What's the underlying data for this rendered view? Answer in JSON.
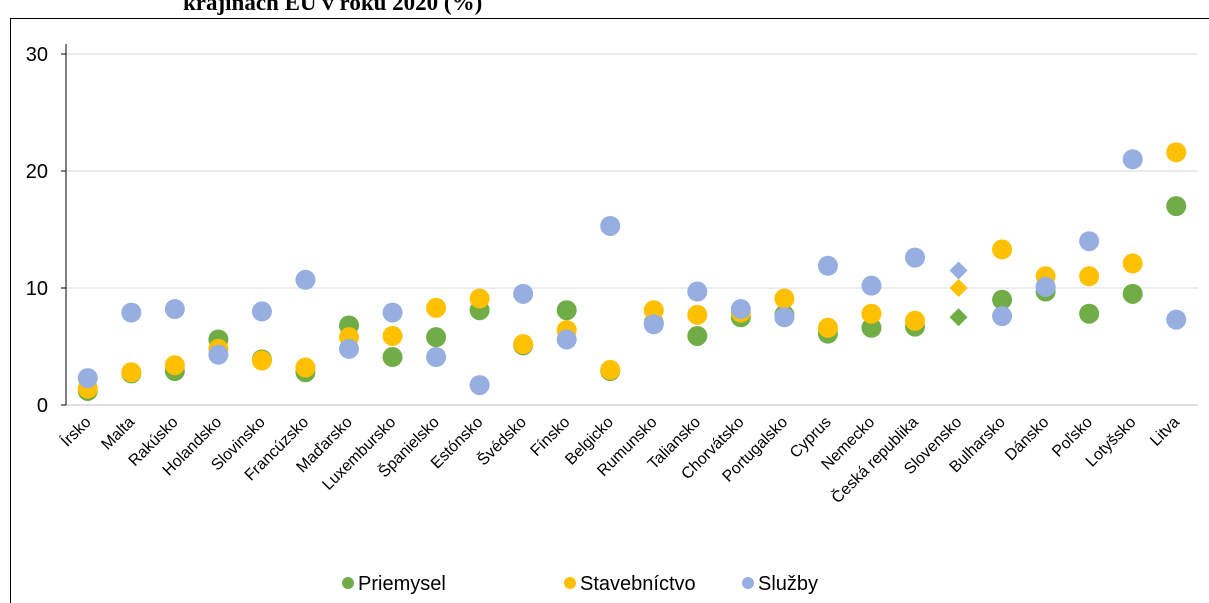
{
  "chart_data": {
    "type": "dot",
    "title": "krajinách EÚ v roku 2020 (%)",
    "categories": [
      "Írsko",
      "Malta",
      "Rakúsko",
      "Holandsko",
      "Slovinsko",
      "Francúzsko",
      "Maďarsko",
      "Luxembursko",
      "Španielsko",
      "Estónsko",
      "Švédsko",
      "Fínsko",
      "Belgicko",
      "Rumunsko",
      "Taliansko",
      "Chorvátsko",
      "Portugalsko",
      "Cyprus",
      "Nemecko",
      "Česká republika",
      "Slovensko",
      "Bulharsko",
      "Dánsko",
      "Poľsko",
      "Lotyšsko",
      "Litva"
    ],
    "series": [
      {
        "name": "Priemysel",
        "color": "#70ad47",
        "values": [
          1.2,
          2.7,
          2.9,
          5.6,
          3.9,
          2.8,
          6.8,
          4.1,
          5.8,
          8.1,
          5.1,
          8.1,
          2.9,
          7.0,
          5.9,
          7.5,
          7.7,
          6.1,
          6.6,
          6.7,
          7.5,
          9.0,
          9.7,
          7.8,
          9.5,
          17.0
        ]
      },
      {
        "name": "Stavebníctvo",
        "color": "#ffc000",
        "values": [
          1.4,
          2.8,
          3.4,
          4.8,
          3.8,
          3.2,
          5.8,
          5.9,
          8.3,
          9.1,
          5.2,
          6.4,
          3.0,
          8.1,
          7.7,
          7.9,
          9.1,
          6.6,
          7.8,
          7.2,
          10.0,
          13.3,
          11.0,
          11.0,
          12.1,
          21.6
        ]
      },
      {
        "name": "Služby",
        "color": "#97aee0",
        "values": [
          2.3,
          7.9,
          8.2,
          4.3,
          8.0,
          10.7,
          4.8,
          7.9,
          4.1,
          1.7,
          9.5,
          5.6,
          15.3,
          6.9,
          9.7,
          8.2,
          7.5,
          11.9,
          10.2,
          12.6,
          11.5,
          7.6,
          10.1,
          14.0,
          21.0,
          7.3
        ]
      }
    ],
    "highlight_index": 20,
    "highlight_marker": "diamond",
    "ylim": [
      0,
      30
    ],
    "yticks": [
      0,
      10,
      20,
      30
    ],
    "grid": true,
    "legend": "bottom"
  }
}
